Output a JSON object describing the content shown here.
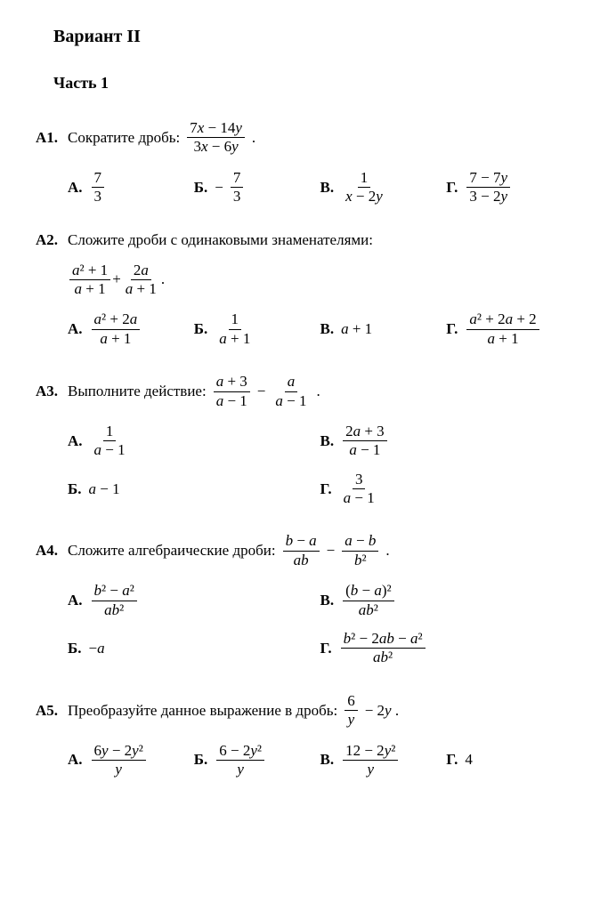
{
  "title": "Вариант II",
  "part": "Часть 1",
  "font": {
    "family": "Times New Roman",
    "body_size_pt": 13,
    "title_size_pt": 15,
    "color": "#000000"
  },
  "background_color": "#ffffff",
  "problems": [
    {
      "tag": "А1.",
      "text": "Сократите дробь:",
      "expr": {
        "num": "7x − 14y",
        "den": "3x − 6y",
        "trail": "."
      },
      "options_layout": "four-col",
      "options": [
        {
          "label": "А.",
          "frac": {
            "num": "7",
            "den": "3"
          }
        },
        {
          "label": "Б.",
          "neg": true,
          "frac": {
            "num": "7",
            "den": "3"
          }
        },
        {
          "label": "В.",
          "frac": {
            "num": "1",
            "den": "x − 2y"
          }
        },
        {
          "label": "Г.",
          "frac": {
            "num": "7 − 7y",
            "den": "3 − 2y"
          }
        }
      ]
    },
    {
      "tag": "А2.",
      "text": "Сложите дроби с одинаковыми знаменателями:",
      "extra_expr": [
        {
          "frac": {
            "num": "a² + 1",
            "den": "a + 1"
          }
        },
        {
          "plain": " + "
        },
        {
          "frac": {
            "num": "2a",
            "den": "a + 1"
          }
        },
        {
          "plain": " ."
        }
      ],
      "options_layout": "four-col",
      "options": [
        {
          "label": "А.",
          "frac": {
            "num": "a² + 2a",
            "den": "a + 1"
          }
        },
        {
          "label": "Б.",
          "frac": {
            "num": "1",
            "den": "a + 1"
          }
        },
        {
          "label": "В.",
          "plain": "a + 1"
        },
        {
          "label": "Г.",
          "frac": {
            "num": "a² + 2a + 2",
            "den": "a + 1"
          }
        }
      ]
    },
    {
      "tag": "А3.",
      "text": "Выполните действие:",
      "inline_expr": [
        {
          "frac": {
            "num": "a + 3",
            "den": "a − 1"
          }
        },
        {
          "plain": " − "
        },
        {
          "frac": {
            "num": "a",
            "den": "a − 1"
          }
        },
        {
          "plain": " ."
        }
      ],
      "options_layout": "two-col",
      "options": [
        {
          "label": "А.",
          "frac": {
            "num": "1",
            "den": "a − 1"
          }
        },
        {
          "label": "В.",
          "frac": {
            "num": "2a + 3",
            "den": "a − 1"
          }
        },
        {
          "label": "Б.",
          "plain": "a − 1"
        },
        {
          "label": "Г.",
          "frac": {
            "num": "3",
            "den": "a − 1"
          }
        }
      ]
    },
    {
      "tag": "А4.",
      "text": "Сложите алгебраические дроби:",
      "inline_expr": [
        {
          "frac": {
            "num": "b − a",
            "den": "ab"
          }
        },
        {
          "plain": " − "
        },
        {
          "frac": {
            "num": "a − b",
            "den": "b²"
          }
        },
        {
          "plain": " ."
        }
      ],
      "options_layout": "two-col",
      "options": [
        {
          "label": "А.",
          "frac": {
            "num": "b² − a²",
            "den": "ab²"
          }
        },
        {
          "label": "В.",
          "frac": {
            "num": "(b − a)²",
            "den": "ab²"
          }
        },
        {
          "label": "Б.",
          "plain": "−a"
        },
        {
          "label": "Г.",
          "frac": {
            "num": "b² − 2ab − a²",
            "den": "ab²"
          }
        }
      ]
    },
    {
      "tag": "А5.",
      "text": "Преобразуйте данное выражение в дробь:",
      "inline_expr": [
        {
          "frac": {
            "num": "6",
            "den": "y"
          }
        },
        {
          "plain": " − 2y ."
        }
      ],
      "options_layout": "four-col",
      "options": [
        {
          "label": "А.",
          "frac": {
            "num": "6y − 2y²",
            "den": "y"
          }
        },
        {
          "label": "Б.",
          "frac": {
            "num": "6 − 2y²",
            "den": "y"
          }
        },
        {
          "label": "В.",
          "frac": {
            "num": "12 − 2y²",
            "den": "y"
          }
        },
        {
          "label": "Г.",
          "plain": "4"
        }
      ]
    }
  ]
}
